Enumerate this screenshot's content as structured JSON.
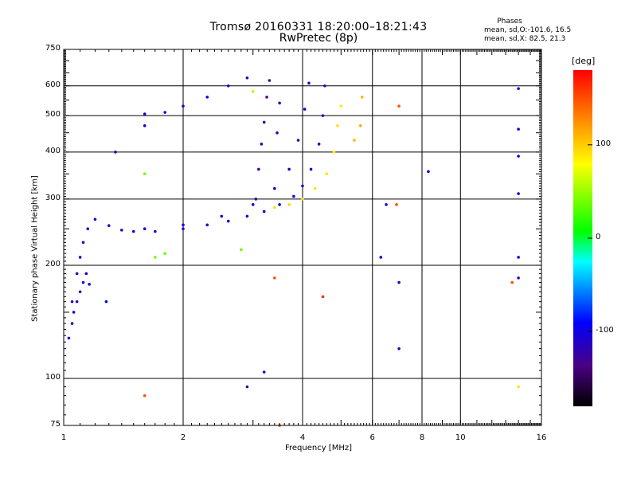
{
  "header": {
    "title_line1": "Tromsø 20160331 18:20:00–18:21:43",
    "title_line2": "RwPretec (8p)"
  },
  "legend": {
    "title": "Phases",
    "line1": "mean, sd,O:-101.6, 16.5",
    "line2": "mean, sd,X:  82.5, 21.3"
  },
  "colorbar": {
    "unit": "[deg]",
    "ticks": [
      {
        "value": 100,
        "label": "100"
      },
      {
        "value": 0,
        "label": "0"
      },
      {
        "value": -100,
        "label": "-100"
      }
    ],
    "range": [
      -180,
      180
    ],
    "colormap": [
      "#000000",
      "#4b0082",
      "#0000ff",
      "#00ffff",
      "#00ff00",
      "#ffff00",
      "#ff8c00",
      "#ff0000"
    ]
  },
  "chart_data": {
    "type": "scatter",
    "title": "Tromsø 20160331 18:20:00–18:21:43",
    "subtitle": "RwPretec (8p)",
    "xlabel": "Frequency [MHz]",
    "ylabel": "Stationary phase Virtual Height [km]",
    "x_scale": "log",
    "y_scale": "log",
    "xlim": [
      1,
      16
    ],
    "ylim": [
      75,
      750
    ],
    "grid": true,
    "x_ticks": [
      {
        "value": 1,
        "label": "1"
      },
      {
        "value": 2,
        "label": "2"
      },
      {
        "value": 4,
        "label": "4"
      },
      {
        "value": 6,
        "label": "6"
      },
      {
        "value": 8,
        "label": "8"
      },
      {
        "value": 10,
        "label": "10"
      },
      {
        "value": 16,
        "label": "16"
      }
    ],
    "y_ticks": [
      {
        "value": 75,
        "label": "75"
      },
      {
        "value": 100,
        "label": "100"
      },
      {
        "value": 200,
        "label": "200"
      },
      {
        "value": 300,
        "label": "300"
      },
      {
        "value": 400,
        "label": "400"
      },
      {
        "value": 500,
        "label": "500"
      },
      {
        "value": 600,
        "label": "600"
      },
      {
        "value": 750,
        "label": "750"
      }
    ],
    "series": [
      {
        "color_by": "phase [deg]",
        "points": [
          {
            "f": 1.03,
            "h": 128,
            "p": -105
          },
          {
            "f": 1.05,
            "h": 140,
            "p": -110
          },
          {
            "f": 1.06,
            "h": 150,
            "p": -100
          },
          {
            "f": 1.08,
            "h": 160,
            "p": -115
          },
          {
            "f": 1.1,
            "h": 170,
            "p": -105
          },
          {
            "f": 1.12,
            "h": 180,
            "p": -95
          },
          {
            "f": 1.14,
            "h": 190,
            "p": -110
          },
          {
            "f": 1.16,
            "h": 178,
            "p": -100
          },
          {
            "f": 1.05,
            "h": 160,
            "p": -120
          },
          {
            "f": 1.08,
            "h": 190,
            "p": -120
          },
          {
            "f": 1.1,
            "h": 210,
            "p": -100
          },
          {
            "f": 1.12,
            "h": 230,
            "p": -110
          },
          {
            "f": 1.15,
            "h": 250,
            "p": -105
          },
          {
            "f": 1.2,
            "h": 265,
            "p": -100
          },
          {
            "f": 1.3,
            "h": 255,
            "p": -110
          },
          {
            "f": 1.4,
            "h": 248,
            "p": -110
          },
          {
            "f": 1.5,
            "h": 246,
            "p": -105
          },
          {
            "f": 1.7,
            "h": 246,
            "p": -115
          },
          {
            "f": 2.0,
            "h": 250,
            "p": -110
          },
          {
            "f": 2.3,
            "h": 256,
            "p": -115
          },
          {
            "f": 2.6,
            "h": 262,
            "p": -110
          },
          {
            "f": 2.9,
            "h": 270,
            "p": -115
          },
          {
            "f": 3.2,
            "h": 278,
            "p": -110
          },
          {
            "f": 3.5,
            "h": 290,
            "p": -100
          },
          {
            "f": 3.8,
            "h": 305,
            "p": -110
          },
          {
            "f": 4.0,
            "h": 325,
            "p": -110
          },
          {
            "f": 4.2,
            "h": 360,
            "p": -110
          },
          {
            "f": 4.4,
            "h": 420,
            "p": -115
          },
          {
            "f": 4.5,
            "h": 500,
            "p": -110
          },
          {
            "f": 4.55,
            "h": 600,
            "p": -120
          },
          {
            "f": 1.6,
            "h": 250,
            "p": -100
          },
          {
            "f": 2.0,
            "h": 256,
            "p": -105
          },
          {
            "f": 2.5,
            "h": 270,
            "p": -105
          },
          {
            "f": 3.0,
            "h": 290,
            "p": -100
          },
          {
            "f": 3.4,
            "h": 320,
            "p": -100
          },
          {
            "f": 3.7,
            "h": 360,
            "p": -110
          },
          {
            "f": 3.9,
            "h": 430,
            "p": -115
          },
          {
            "f": 4.05,
            "h": 520,
            "p": -110
          },
          {
            "f": 4.15,
            "h": 610,
            "p": -115
          },
          {
            "f": 3.05,
            "h": 300,
            "p": -130
          },
          {
            "f": 3.1,
            "h": 360,
            "p": -130
          },
          {
            "f": 3.15,
            "h": 420,
            "p": -120
          },
          {
            "f": 3.2,
            "h": 480,
            "p": -125
          },
          {
            "f": 3.25,
            "h": 560,
            "p": -135
          },
          {
            "f": 3.3,
            "h": 620,
            "p": -125
          },
          {
            "f": 3.45,
            "h": 450,
            "p": -130
          },
          {
            "f": 3.5,
            "h": 540,
            "p": -125
          },
          {
            "f": 1.6,
            "h": 505,
            "p": -110
          },
          {
            "f": 1.8,
            "h": 510,
            "p": -100
          },
          {
            "f": 2.0,
            "h": 530,
            "p": -110
          },
          {
            "f": 2.3,
            "h": 560,
            "p": -105
          },
          {
            "f": 2.6,
            "h": 600,
            "p": -110
          },
          {
            "f": 2.9,
            "h": 630,
            "p": -115
          },
          {
            "f": 3.4,
            "h": 285,
            "p": 92
          },
          {
            "f": 3.7,
            "h": 290,
            "p": 95
          },
          {
            "f": 4.0,
            "h": 300,
            "p": 92
          },
          {
            "f": 4.3,
            "h": 320,
            "p": 90
          },
          {
            "f": 4.6,
            "h": 350,
            "p": 90
          },
          {
            "f": 4.8,
            "h": 400,
            "p": 88
          },
          {
            "f": 4.9,
            "h": 470,
            "p": 90
          },
          {
            "f": 5.0,
            "h": 530,
            "p": 88
          },
          {
            "f": 5.4,
            "h": 430,
            "p": 110
          },
          {
            "f": 5.6,
            "h": 470,
            "p": 115
          },
          {
            "f": 5.65,
            "h": 560,
            "p": 110
          },
          {
            "f": 1.7,
            "h": 210,
            "p": 40
          },
          {
            "f": 1.8,
            "h": 215,
            "p": 35
          },
          {
            "f": 2.8,
            "h": 220,
            "p": 35
          },
          {
            "f": 1.6,
            "h": 350,
            "p": 40
          },
          {
            "f": 3.0,
            "h": 580,
            "p": 60
          },
          {
            "f": 1.28,
            "h": 160,
            "p": -90
          },
          {
            "f": 1.35,
            "h": 400,
            "p": -110
          },
          {
            "f": 1.6,
            "h": 470,
            "p": -100
          },
          {
            "f": 6.3,
            "h": 210,
            "p": -110
          },
          {
            "f": 6.5,
            "h": 290,
            "p": -115
          },
          {
            "f": 7.0,
            "h": 180,
            "p": -110
          },
          {
            "f": 7.0,
            "h": 120,
            "p": -110
          },
          {
            "f": 8.3,
            "h": 355,
            "p": -100
          },
          {
            "f": 7.0,
            "h": 530,
            "p": 150
          },
          {
            "f": 6.9,
            "h": 290,
            "p": 150
          },
          {
            "f": 4.5,
            "h": 165,
            "p": 150
          },
          {
            "f": 4.5,
            "h": 165,
            "p": 160
          },
          {
            "f": 3.4,
            "h": 185,
            "p": 150
          },
          {
            "f": 3.5,
            "h": 75,
            "p": 150
          },
          {
            "f": 14.0,
            "h": 590,
            "p": -110
          },
          {
            "f": 14.0,
            "h": 460,
            "p": -100
          },
          {
            "f": 14.0,
            "h": 390,
            "p": -100
          },
          {
            "f": 14.0,
            "h": 310,
            "p": -110
          },
          {
            "f": 14.0,
            "h": 210,
            "p": -110
          },
          {
            "f": 14.0,
            "h": 185,
            "p": -110
          },
          {
            "f": 13.5,
            "h": 180,
            "p": 150
          },
          {
            "f": 14.0,
            "h": 95,
            "p": 90
          },
          {
            "f": 1.6,
            "h": 90,
            "p": 150
          },
          {
            "f": 2.9,
            "h": 95,
            "p": -120
          },
          {
            "f": 3.2,
            "h": 104,
            "p": -110
          }
        ]
      }
    ]
  }
}
